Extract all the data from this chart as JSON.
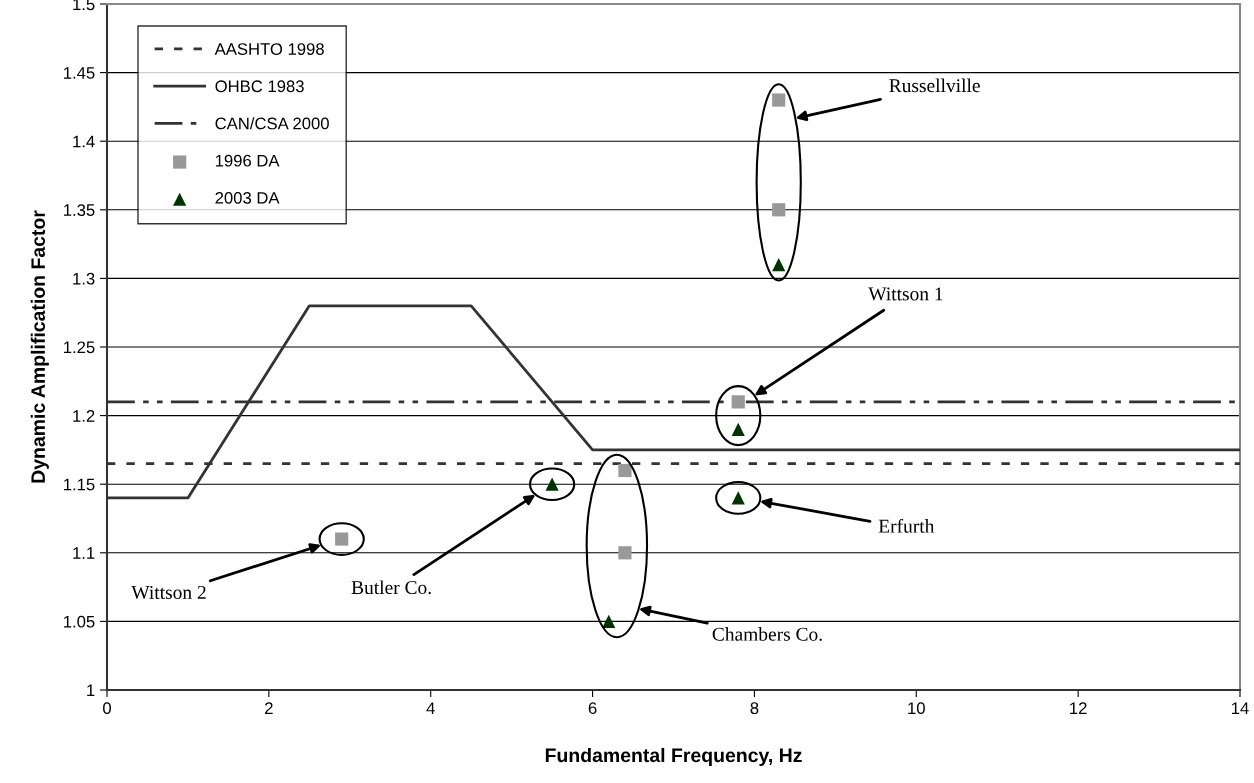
{
  "chart_data": {
    "type": "line",
    "xlabel": "Fundamental Frequency, Hz",
    "ylabel": "Dynamic Amplification Factor",
    "xlim": [
      0,
      14
    ],
    "xticks": [
      0,
      2,
      4,
      6,
      8,
      10,
      12,
      14
    ],
    "ylim": [
      1,
      1.5
    ],
    "yticks": [
      1,
      1.05,
      1.1,
      1.15,
      1.2,
      1.25,
      1.3,
      1.35,
      1.4,
      1.45,
      1.5
    ],
    "grid": "y",
    "legend": "top left",
    "series": [
      {
        "name": "AASHTO 1998",
        "color": "#333333",
        "line_style": "dotted",
        "marker": "none",
        "x": [
          0,
          14
        ],
        "values": [
          1.165,
          1.165
        ]
      },
      {
        "name": "OHBC 1983",
        "color": "#333333",
        "line_style": "solid",
        "marker": "none",
        "x": [
          0,
          1,
          2.5,
          4.5,
          6,
          14
        ],
        "values": [
          1.14,
          1.14,
          1.28,
          1.28,
          1.175,
          1.175
        ]
      },
      {
        "name": "CAN/CSA 2000",
        "color": "#333333",
        "line_style": "dashdot",
        "marker": "none",
        "x": [
          0,
          14
        ],
        "values": [
          1.21,
          1.21
        ]
      },
      {
        "name": "1996 DA",
        "type": "scatter",
        "color": "#999999",
        "marker": "square",
        "x": [
          2.9,
          6.4,
          6.4,
          7.8,
          8.3,
          8.3
        ],
        "values": [
          1.11,
          1.16,
          1.1,
          1.21,
          1.43,
          1.35
        ]
      },
      {
        "name": "2003 DA",
        "type": "scatter",
        "color": "#003300",
        "marker": "triangle",
        "x": [
          5.5,
          6.2,
          7.8,
          7.8,
          8.3
        ],
        "values": [
          1.15,
          1.05,
          1.19,
          1.14,
          1.31
        ]
      }
    ],
    "annotations": [
      "Russellville",
      "Wittson 1",
      "Erfurth",
      "Chambers Co.",
      "Butler Co.",
      "Wittson 2"
    ]
  }
}
